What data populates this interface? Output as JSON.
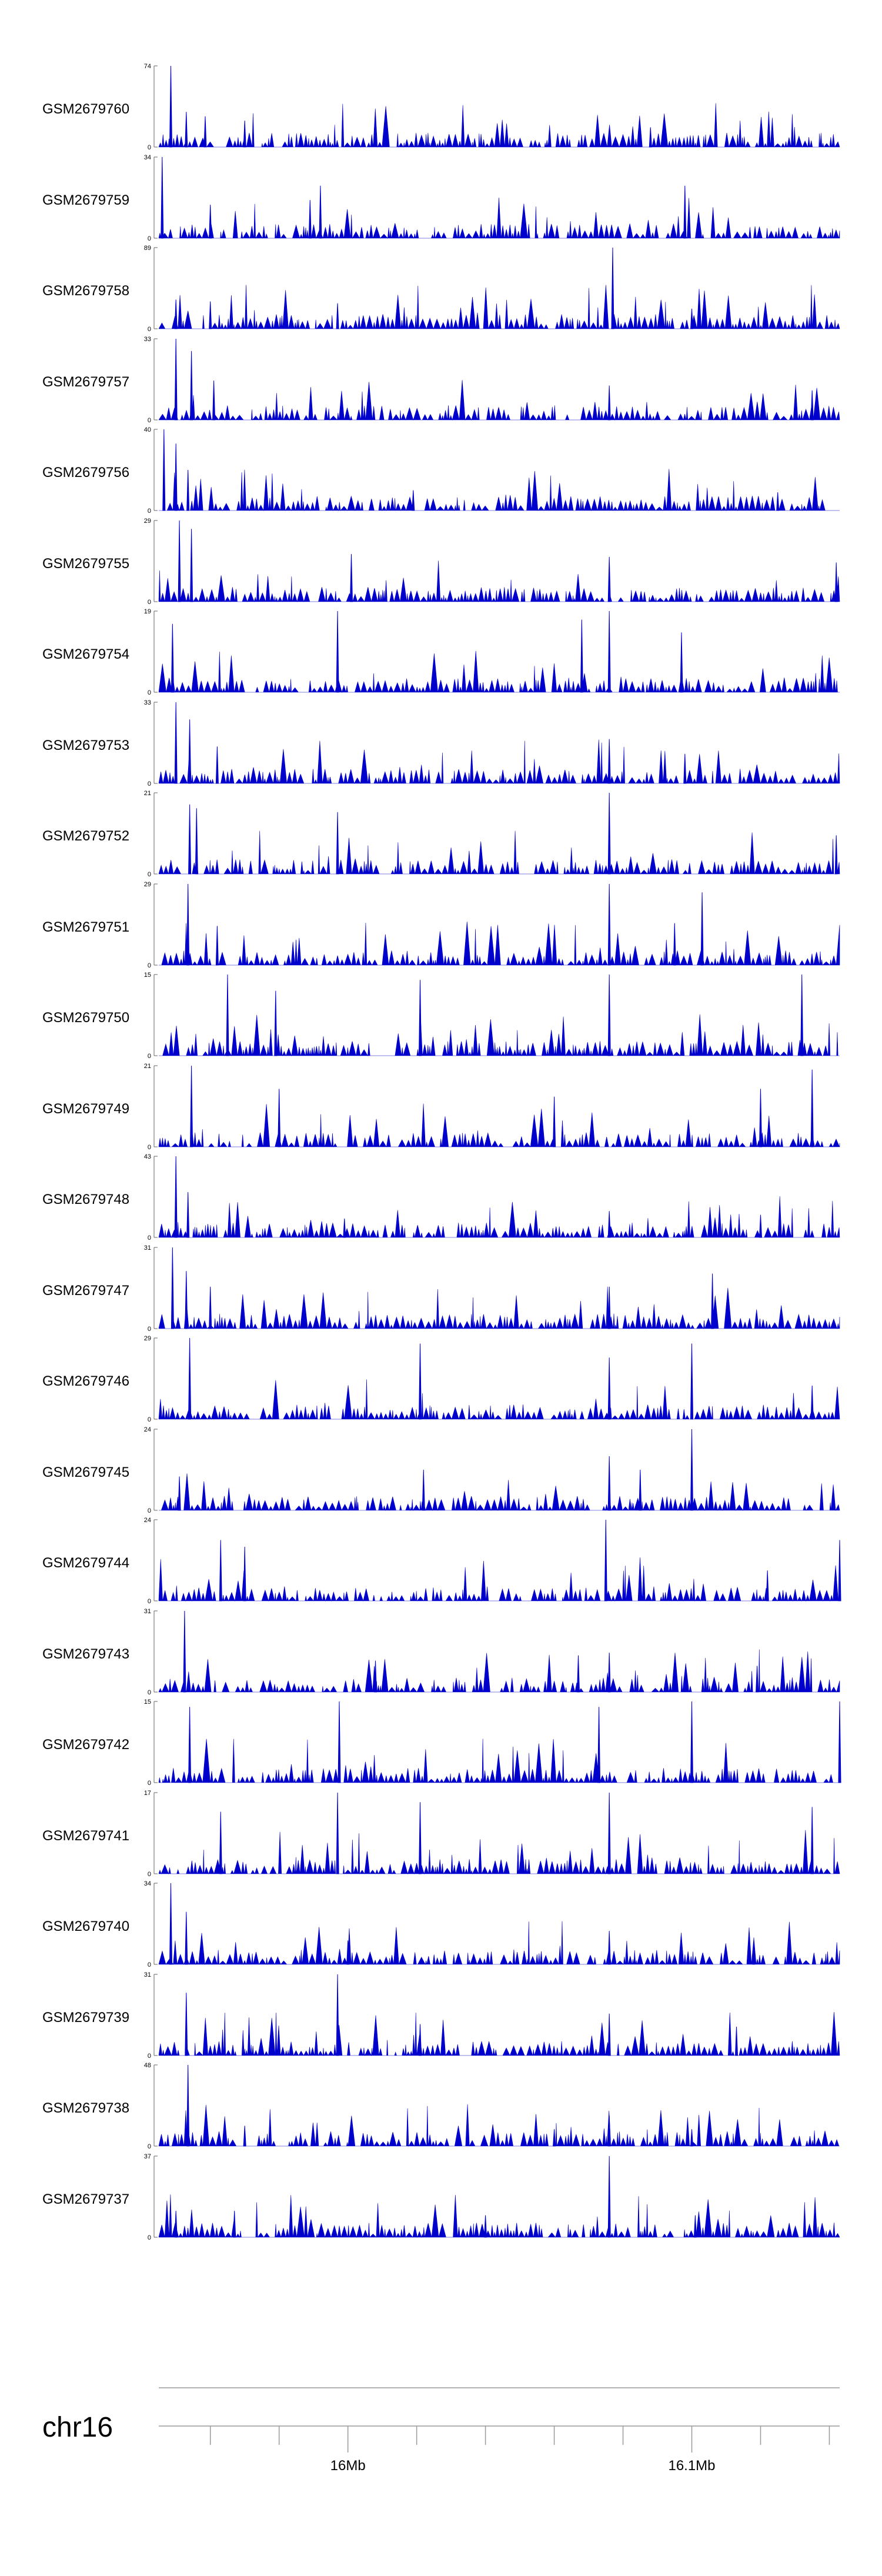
{
  "chart_data": {
    "type": "area",
    "region": {
      "chrom": "chr16",
      "start": 15945000,
      "end": 16143000
    },
    "genome_axis": {
      "label": "chr16",
      "major_ticks": [
        {
          "pos": 16000000,
          "label": "16Mb"
        },
        {
          "pos": 16100000,
          "label": "16.1Mb"
        }
      ],
      "minor_ticks": [
        15960000,
        15980000,
        16020000,
        16040000,
        16060000,
        16080000,
        16120000,
        16140000
      ]
    },
    "tracks": [
      {
        "name": "GSM2679760",
        "max": 74,
        "min": 0,
        "peaks": [
          [
            15948500,
            74
          ],
          [
            15953000,
            32
          ],
          [
            15958500,
            28
          ],
          [
            15970000,
            24
          ],
          [
            16088000,
            18
          ]
        ]
      },
      {
        "name": "GSM2679759",
        "max": 34,
        "min": 0,
        "peaks": [
          [
            15946000,
            34
          ],
          [
            15960000,
            14
          ],
          [
            15989000,
            16
          ],
          [
            15992000,
            22
          ],
          [
            16098000,
            22
          ]
        ]
      },
      {
        "name": "GSM2679758",
        "max": 89,
        "min": 0,
        "peaks": [
          [
            15950000,
            32
          ],
          [
            15960000,
            30
          ],
          [
            15997000,
            28
          ],
          [
            16077000,
            89
          ],
          [
            16100000,
            22
          ]
        ]
      },
      {
        "name": "GSM2679757",
        "max": 33,
        "min": 0,
        "peaks": [
          [
            15950000,
            33
          ],
          [
            15954500,
            28
          ],
          [
            15961000,
            16
          ],
          [
            16076000,
            14
          ],
          [
            16135000,
            12
          ]
        ]
      },
      {
        "name": "GSM2679756",
        "max": 40,
        "min": 0,
        "peaks": [
          [
            15946500,
            40
          ],
          [
            15950000,
            33
          ],
          [
            15953500,
            20
          ],
          [
            16019000,
            10
          ],
          [
            16125000,
            9
          ]
        ]
      },
      {
        "name": "GSM2679755",
        "max": 29,
        "min": 0,
        "peaks": [
          [
            15951000,
            29
          ],
          [
            15954500,
            26
          ],
          [
            16001000,
            17
          ],
          [
            16076000,
            16
          ],
          [
            16142000,
            14
          ]
        ]
      },
      {
        "name": "GSM2679754",
        "max": 19,
        "min": 0,
        "peaks": [
          [
            15949000,
            16
          ],
          [
            15997000,
            19
          ],
          [
            16068000,
            17
          ],
          [
            16076000,
            19
          ],
          [
            16097000,
            14
          ]
        ]
      },
      {
        "name": "GSM2679753",
        "max": 33,
        "min": 0,
        "peaks": [
          [
            15950000,
            33
          ],
          [
            15954000,
            26
          ],
          [
            15962000,
            15
          ],
          [
            16076000,
            18
          ],
          [
            16098000,
            12
          ]
        ]
      },
      {
        "name": "GSM2679752",
        "max": 21,
        "min": 0,
        "peaks": [
          [
            15954000,
            18
          ],
          [
            15956000,
            17
          ],
          [
            15997000,
            16
          ],
          [
            16076000,
            21
          ],
          [
            16142000,
            10
          ]
        ]
      },
      {
        "name": "GSM2679751",
        "max": 29,
        "min": 0,
        "peaks": [
          [
            15953500,
            29
          ],
          [
            15962000,
            14
          ],
          [
            16076000,
            29
          ],
          [
            16095000,
            15
          ],
          [
            16103000,
            26
          ]
        ]
      },
      {
        "name": "GSM2679750",
        "max": 15,
        "min": 0,
        "peaks": [
          [
            15965000,
            15
          ],
          [
            15979000,
            12
          ],
          [
            16021000,
            14
          ],
          [
            16076000,
            15
          ],
          [
            16132000,
            15
          ]
        ]
      },
      {
        "name": "GSM2679749",
        "max": 21,
        "min": 0,
        "peaks": [
          [
            15954500,
            21
          ],
          [
            15980000,
            15
          ],
          [
            16060000,
            13
          ],
          [
            16120000,
            15
          ],
          [
            16135000,
            20
          ]
        ]
      },
      {
        "name": "GSM2679748",
        "max": 43,
        "min": 0,
        "peaks": [
          [
            15950000,
            43
          ],
          [
            15953500,
            24
          ],
          [
            15999000,
            10
          ],
          [
            16076000,
            14
          ],
          [
            16120000,
            12
          ]
        ]
      },
      {
        "name": "GSM2679747",
        "max": 31,
        "min": 0,
        "peaks": [
          [
            15949000,
            31
          ],
          [
            15953000,
            22
          ],
          [
            15960000,
            16
          ],
          [
            16076000,
            16
          ],
          [
            16106000,
            21
          ]
        ]
      },
      {
        "name": "GSM2679746",
        "max": 29,
        "min": 0,
        "peaks": [
          [
            15954000,
            29
          ],
          [
            16021000,
            27
          ],
          [
            16076000,
            22
          ],
          [
            16100000,
            27
          ],
          [
            16135000,
            12
          ]
        ]
      },
      {
        "name": "GSM2679745",
        "max": 24,
        "min": 0,
        "peaks": [
          [
            15951000,
            10
          ],
          [
            16022000,
            12
          ],
          [
            16076000,
            16
          ],
          [
            16085000,
            12
          ],
          [
            16100000,
            24
          ]
        ]
      },
      {
        "name": "GSM2679744",
        "max": 24,
        "min": 0,
        "peaks": [
          [
            15963000,
            18
          ],
          [
            15970000,
            16
          ],
          [
            16075000,
            24
          ],
          [
            16122000,
            9
          ],
          [
            16143000,
            18
          ]
        ]
      },
      {
        "name": "GSM2679743",
        "max": 31,
        "min": 0,
        "peaks": [
          [
            15952500,
            31
          ],
          [
            16008000,
            12
          ],
          [
            16067000,
            14
          ],
          [
            16076000,
            15
          ],
          [
            16119000,
            10
          ]
        ]
      },
      {
        "name": "GSM2679742",
        "max": 15,
        "min": 0,
        "peaks": [
          [
            15954000,
            14
          ],
          [
            15997500,
            15
          ],
          [
            16073000,
            14
          ],
          [
            16100000,
            15
          ],
          [
            16143000,
            15
          ]
        ]
      },
      {
        "name": "GSM2679741",
        "max": 17,
        "min": 0,
        "peaks": [
          [
            15963000,
            13
          ],
          [
            15997000,
            17
          ],
          [
            16021000,
            15
          ],
          [
            16076000,
            17
          ],
          [
            16135000,
            14
          ]
        ]
      },
      {
        "name": "GSM2679740",
        "max": 34,
        "min": 0,
        "peaks": [
          [
            15948500,
            34
          ],
          [
            15953000,
            22
          ],
          [
            16000000,
            10
          ],
          [
            16076000,
            14
          ],
          [
            16118000,
            9
          ]
        ]
      },
      {
        "name": "GSM2679739",
        "max": 31,
        "min": 0,
        "peaks": [
          [
            15953000,
            24
          ],
          [
            15997000,
            31
          ],
          [
            16021000,
            12
          ],
          [
            16076000,
            16
          ],
          [
            16113000,
            11
          ]
        ]
      },
      {
        "name": "GSM2679738",
        "max": 48,
        "min": 0,
        "peaks": [
          [
            15953500,
            48
          ],
          [
            15970000,
            12
          ],
          [
            16060000,
            10
          ],
          [
            16076000,
            18
          ],
          [
            16100000,
            10
          ]
        ]
      },
      {
        "name": "GSM2679737",
        "max": 37,
        "min": 0,
        "peaks": [
          [
            15950000,
            12
          ],
          [
            15967000,
            12
          ],
          [
            16040000,
            10
          ],
          [
            16076000,
            37
          ],
          [
            16101000,
            10
          ]
        ]
      }
    ]
  }
}
